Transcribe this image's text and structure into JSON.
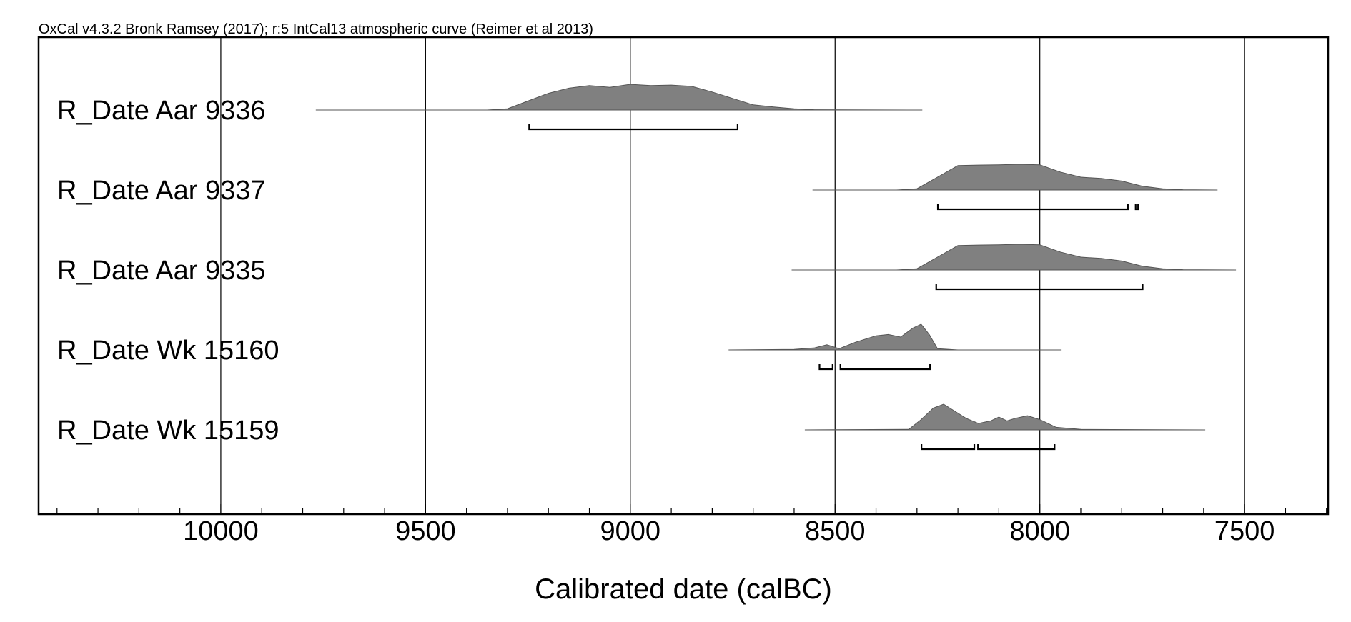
{
  "chart_data": {
    "type": "ridgeline",
    "title": "OxCal v4.3.2 Bronk Ramsey (2017); r:5 IntCal13 atmospheric curve (Reimer et al 2013)",
    "xlabel": "Calibrated date (calBC)",
    "xlim": [
      10445,
      7296
    ],
    "xticks": [
      10000,
      9500,
      9000,
      8500,
      8000,
      7500
    ],
    "xminorticks": [
      10400,
      10300,
      10200,
      10100,
      9900,
      9800,
      9700,
      9600,
      9400,
      9300,
      9200,
      9100,
      8900,
      8800,
      8700,
      8600,
      8400,
      8300,
      8200,
      8100,
      7900,
      7800,
      7700,
      7600,
      7400,
      7300
    ],
    "grid": true,
    "color": "#808080",
    "series": [
      {
        "name": "R_Date Aar 9336",
        "x": [
          9768,
          9350,
          9300,
          9250,
          9200,
          9150,
          9100,
          9050,
          9000,
          8950,
          8900,
          8850,
          8800,
          8750,
          8700,
          8650,
          8600,
          8550,
          8287
        ],
        "values": [
          0,
          0,
          0.05,
          0.35,
          0.65,
          0.85,
          0.95,
          0.88,
          1.0,
          0.95,
          0.97,
          0.92,
          0.7,
          0.45,
          0.2,
          0.12,
          0.05,
          0.01,
          0
        ],
        "ranges": [
          [
            9247,
            8738
          ]
        ]
      },
      {
        "name": "R_Date Aar 9337",
        "x": [
          8555,
          8350,
          8300,
          8250,
          8200,
          8150,
          8100,
          8050,
          8000,
          7950,
          7900,
          7850,
          7800,
          7750,
          7700,
          7650,
          7566
        ],
        "values": [
          0,
          0,
          0.05,
          0.5,
          0.95,
          0.97,
          0.98,
          1.0,
          0.98,
          0.7,
          0.5,
          0.45,
          0.35,
          0.15,
          0.05,
          0.01,
          0
        ],
        "ranges": [
          [
            8249,
            7785
          ],
          [
            7766,
            7760
          ]
        ]
      },
      {
        "name": "R_Date Aar 9335",
        "x": [
          8606,
          8350,
          8300,
          8250,
          8200,
          8150,
          8100,
          8050,
          8000,
          7950,
          7900,
          7850,
          7800,
          7750,
          7700,
          7650,
          7521
        ],
        "values": [
          0,
          0,
          0.05,
          0.5,
          0.95,
          0.97,
          0.98,
          1.0,
          0.98,
          0.7,
          0.5,
          0.45,
          0.35,
          0.15,
          0.05,
          0.01,
          0
        ],
        "ranges": [
          [
            8253,
            7749
          ]
        ]
      },
      {
        "name": "R_Date Wk 15160",
        "x": [
          8760,
          8600,
          8550,
          8520,
          8490,
          8450,
          8400,
          8370,
          8340,
          8310,
          8290,
          8270,
          8250,
          8200,
          7947
        ],
        "values": [
          0,
          0.02,
          0.08,
          0.2,
          0.05,
          0.3,
          0.55,
          0.6,
          0.5,
          0.85,
          1.0,
          0.6,
          0.05,
          0,
          0
        ],
        "ranges": [
          [
            8538,
            8506
          ],
          [
            8487,
            8268
          ]
        ]
      },
      {
        "name": "R_Date Wk 15159",
        "x": [
          8574,
          8320,
          8290,
          8260,
          8235,
          8210,
          8180,
          8150,
          8120,
          8100,
          8080,
          8060,
          8030,
          8000,
          7960,
          7900,
          7596
        ],
        "values": [
          0,
          0.02,
          0.4,
          0.85,
          1.0,
          0.75,
          0.45,
          0.25,
          0.35,
          0.5,
          0.35,
          0.45,
          0.55,
          0.4,
          0.1,
          0.02,
          0
        ],
        "ranges": [
          [
            8289,
            8160
          ],
          [
            8151,
            7964
          ]
        ]
      }
    ]
  }
}
